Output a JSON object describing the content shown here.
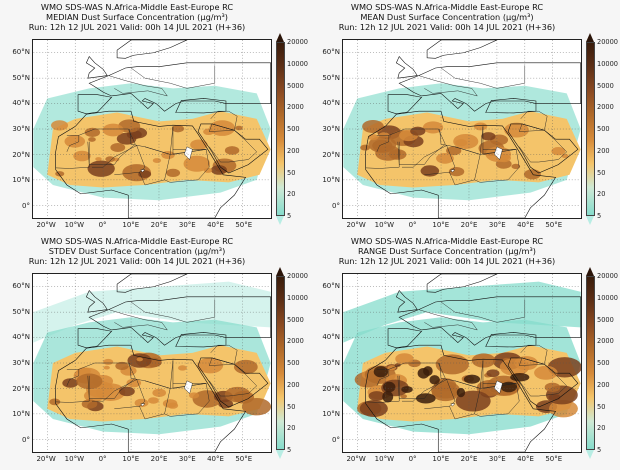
{
  "panels": [
    {
      "line1": "WMO SDS-WAS   N.Africa-Middle East-Europe RC",
      "line2": "MEDIAN    Dust Surface Concentration (µg/m³)",
      "line3": "Run: 12h 12 JUL 2021   Valid: 00h 14 JUL 2021 (H+36)",
      "intensity": 0.55
    },
    {
      "line1": "WMO SDS-WAS   N.Africa-Middle East-Europe RC",
      "line2": "MEAN    Dust Surface Concentration (µg/m³)",
      "line3": "Run: 12h 12 JUL 2021   Valid: 00h 14 JUL 2021 (H+36)",
      "intensity": 0.6
    },
    {
      "line1": "WMO SDS-WAS   N.Africa-Middle East-Europe RC",
      "line2": "STDEV    Dust Surface Concentration (µg/m³)",
      "line3": "Run: 12h 12 JUL 2021   Valid: 00h 14 JUL 2021 (H+36)",
      "intensity": 0.72
    },
    {
      "line1": "WMO SDS-WAS   N.Africa-Middle East-Europe RC",
      "line2": "RANGE    Dust Surface Concentration (µg/m³)",
      "line3": "Run: 12h 12 JUL 2021   Valid: 00h 14 JUL 2021 (H+36)",
      "intensity": 0.92
    }
  ],
  "lat_ticks": [
    "60°N",
    "50°N",
    "40°N",
    "30°N",
    "20°N",
    "10°N",
    "0°"
  ],
  "lon_ticks": [
    "20°W",
    "10°W",
    "0°",
    "10°E",
    "20°E",
    "30°E",
    "40°E",
    "50°E"
  ],
  "colorbar_ticks": [
    "20000",
    "10000",
    "5000",
    "2000",
    "500",
    "200",
    "50",
    "20",
    "5"
  ],
  "colors": {
    "very_high": "#3a1d0c",
    "high": "#7a3f1d",
    "mid_high": "#b06a2a",
    "mid": "#d58a3a",
    "low_mid": "#f4c46a",
    "low": "#86dccc",
    "very_low": "#cfe9d5"
  }
}
